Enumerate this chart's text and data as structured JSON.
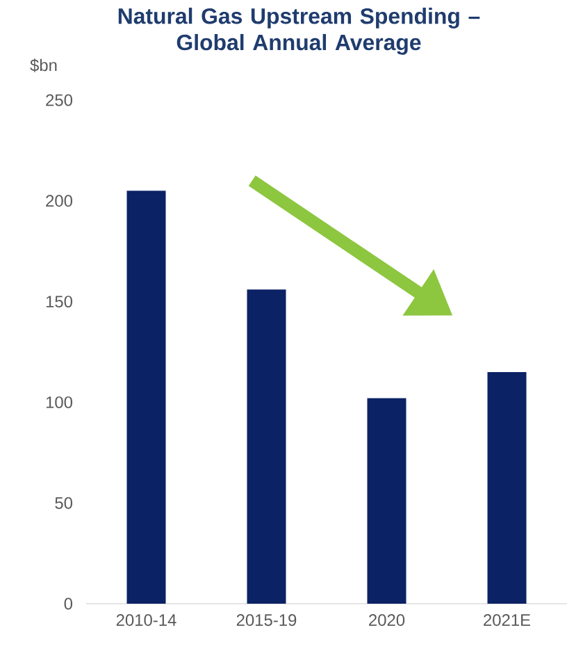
{
  "chart_data": {
    "type": "bar",
    "title": "Natural Gas Upstream Spending –\nGlobal Annual Average",
    "ylabel": "$bn",
    "categories": [
      "2010-14",
      "2015-19",
      "2020",
      "2021E"
    ],
    "values": [
      205,
      156,
      102,
      115
    ],
    "color": "#0b2265",
    "ylim": [
      0,
      250
    ],
    "yticks": [
      0,
      50,
      100,
      150,
      200,
      250
    ]
  }
}
